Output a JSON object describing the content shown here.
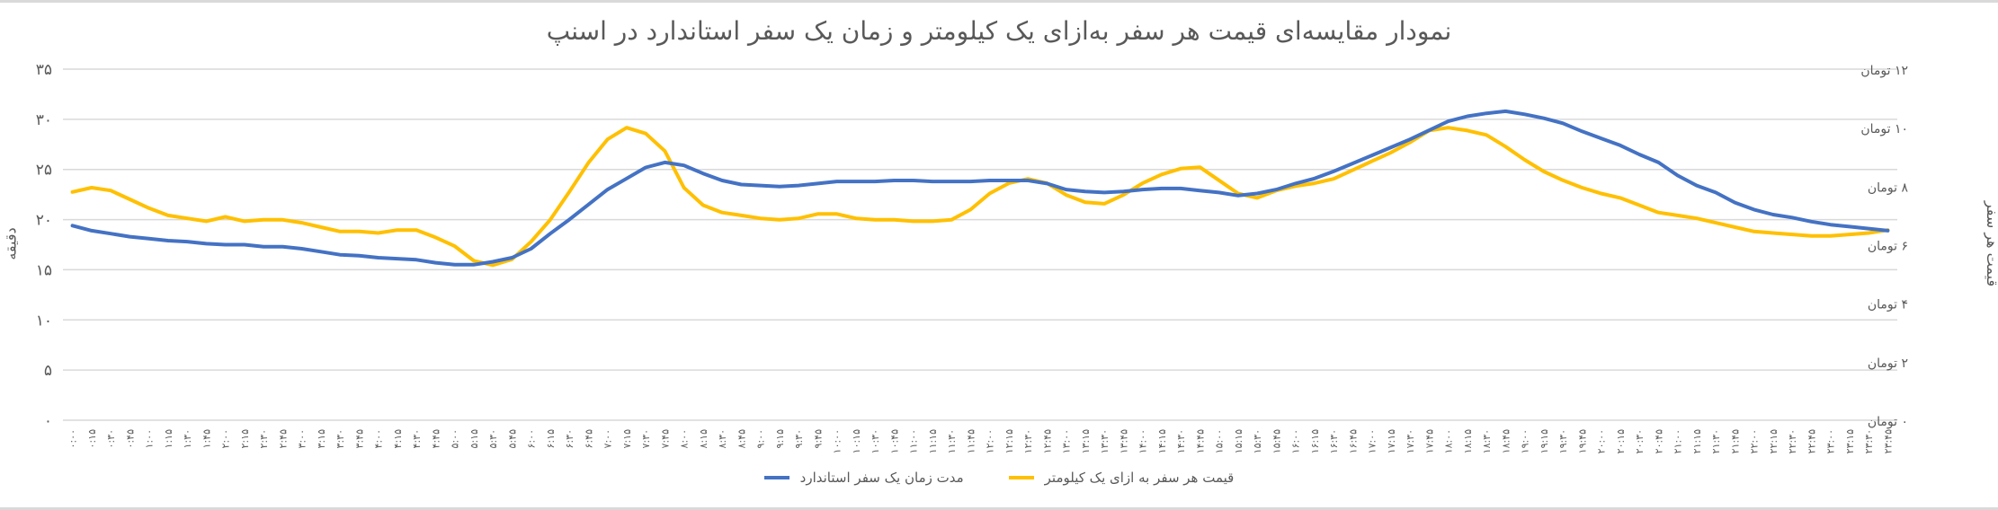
{
  "title": "نمودار مقایسه‌ای قیمت هر سفر به‌ازای یک کیلومتر و زمان یک سفر استاندارد در اسنپ",
  "left_axis": {
    "title": "دقیقه",
    "ticks": [
      "۰",
      "۵",
      "۱۰",
      "۱۵",
      "۲۰",
      "۲۵",
      "۳۰",
      "۳۵"
    ]
  },
  "right_axis": {
    "title": "قیمت هر سفر",
    "ticks": [
      "۰ تومان",
      "۲ تومان",
      "۴ تومان",
      "۶ تومان",
      "۸ تومان",
      "۱۰ تومان",
      "۱۲ تومان"
    ]
  },
  "legend": {
    "series_time": "مدت زمان یک سفر استاندارد",
    "series_price": "قیمت هر سفر به ازای یک کیلومتر"
  },
  "colors": {
    "time": "#4472C4",
    "price": "#FFC000",
    "grid": "#d9d9d9",
    "text": "#595959"
  },
  "chart_data": {
    "type": "line",
    "title": "نمودار مقایسه‌ای قیمت هر سفر به‌ازای یک کیلومتر و زمان یک سفر استاندارد در اسنپ",
    "xlabel": "",
    "ylabel": "دقیقه",
    "y2label": "قیمت هر سفر",
    "ylim": [
      0,
      35
    ],
    "y2lim": [
      0,
      12
    ],
    "grid": true,
    "legend_position": "bottom",
    "x": [
      "۰:۰۰",
      "۰:۱۵",
      "۰:۳۰",
      "۰:۴۵",
      "۱:۰۰",
      "۱:۱۵",
      "۱:۳۰",
      "۱:۴۵",
      "۲:۰۰",
      "۲:۱۵",
      "۲:۳۰",
      "۲:۴۵",
      "۳:۰۰",
      "۳:۱۵",
      "۳:۳۰",
      "۳:۴۵",
      "۴:۰۰",
      "۴:۱۵",
      "۴:۳۰",
      "۴:۴۵",
      "۵:۰۰",
      "۵:۱۵",
      "۵:۳۰",
      "۵:۴۵",
      "۶:۰۰",
      "۶:۱۵",
      "۶:۳۰",
      "۶:۴۵",
      "۷:۰۰",
      "۷:۱۵",
      "۷:۳۰",
      "۷:۴۵",
      "۸:۰۰",
      "۸:۱۵",
      "۸:۳۰",
      "۸:۴۵",
      "۹:۰۰",
      "۹:۱۵",
      "۹:۳۰",
      "۹:۴۵",
      "۱۰:۰۰",
      "۱۰:۱۵",
      "۱۰:۳۰",
      "۱۰:۴۵",
      "۱۱:۰۰",
      "۱۱:۱۵",
      "۱۱:۳۰",
      "۱۱:۴۵",
      "۱۲:۰۰",
      "۱۲:۱۵",
      "۱۲:۳۰",
      "۱۲:۴۵",
      "۱۳:۰۰",
      "۱۳:۱۵",
      "۱۳:۳۰",
      "۱۳:۴۵",
      "۱۴:۰۰",
      "۱۴:۱۵",
      "۱۴:۳۰",
      "۱۴:۴۵",
      "۱۵:۰۰",
      "۱۵:۱۵",
      "۱۵:۳۰",
      "۱۵:۴۵",
      "۱۶:۰۰",
      "۱۶:۱۵",
      "۱۶:۳۰",
      "۱۶:۴۵",
      "۱۷:۰۰",
      "۱۷:۱۵",
      "۱۷:۳۰",
      "۱۷:۴۵",
      "۱۸:۰۰",
      "۱۸:۱۵",
      "۱۸:۳۰",
      "۱۸:۴۵",
      "۱۹:۰۰",
      "۱۹:۱۵",
      "۱۹:۳۰",
      "۱۹:۴۵",
      "۲۰:۰۰",
      "۲۰:۱۵",
      "۲۰:۳۰",
      "۲۰:۴۵",
      "۲۱:۰۰",
      "۲۱:۱۵",
      "۲۱:۳۰",
      "۲۱:۴۵",
      "۲۲:۰۰",
      "۲۲:۱۵",
      "۲۲:۳۰",
      "۲۲:۴۵",
      "۲۳:۰۰",
      "۲۳:۱۵",
      "۲۳:۳۰",
      "۲۳:۴۵"
    ],
    "series": [
      {
        "name": "مدت زمان یک سفر استاندارد",
        "axis": "left",
        "values": [
          19.4,
          18.9,
          18.6,
          18.3,
          18.1,
          17.9,
          17.8,
          17.6,
          17.5,
          17.5,
          17.3,
          17.3,
          17.1,
          16.8,
          16.5,
          16.4,
          16.2,
          16.1,
          16.0,
          15.7,
          15.5,
          15.5,
          15.8,
          16.2,
          17.1,
          18.6,
          20.0,
          21.5,
          23.0,
          24.1,
          25.2,
          25.7,
          25.4,
          24.6,
          23.9,
          23.5,
          23.4,
          23.3,
          23.4,
          23.6,
          23.8,
          23.8,
          23.8,
          23.9,
          23.9,
          23.8,
          23.8,
          23.8,
          23.9,
          23.9,
          23.9,
          23.6,
          23.0,
          22.8,
          22.7,
          22.8,
          23.0,
          23.1,
          23.1,
          22.9,
          22.7,
          22.4,
          22.6,
          23.0,
          23.6,
          24.1,
          24.8,
          25.6,
          26.4,
          27.2,
          28.0,
          28.9,
          29.8,
          30.3,
          30.6,
          30.8,
          30.5,
          30.1,
          29.6,
          28.8,
          28.1,
          27.4,
          26.5,
          25.7,
          24.4,
          23.4,
          22.7,
          21.7,
          21.0,
          20.5,
          20.2,
          19.8,
          19.5,
          19.3,
          19.1,
          18.9
        ]
      },
      {
        "name": "قیمت هر سفر به ازای یک کیلومتر",
        "axis": "right",
        "values": [
          7.8,
          7.95,
          7.85,
          7.55,
          7.25,
          7.0,
          6.9,
          6.8,
          6.95,
          6.8,
          6.85,
          6.85,
          6.75,
          6.6,
          6.45,
          6.45,
          6.4,
          6.5,
          6.5,
          6.25,
          5.95,
          5.45,
          5.3,
          5.5,
          6.1,
          6.85,
          7.8,
          8.8,
          9.6,
          10.0,
          9.8,
          9.2,
          7.95,
          7.35,
          7.1,
          7.0,
          6.9,
          6.85,
          6.9,
          7.05,
          7.05,
          6.9,
          6.85,
          6.85,
          6.8,
          6.8,
          6.85,
          7.2,
          7.75,
          8.1,
          8.25,
          8.1,
          7.7,
          7.45,
          7.4,
          7.7,
          8.1,
          8.4,
          8.6,
          8.65,
          8.2,
          7.75,
          7.6,
          7.85,
          8.0,
          8.1,
          8.25,
          8.55,
          8.85,
          9.15,
          9.5,
          9.9,
          10.0,
          9.9,
          9.75,
          9.35,
          8.9,
          8.5,
          8.2,
          7.95,
          7.75,
          7.6,
          7.35,
          7.1,
          7.0,
          6.9,
          6.75,
          6.6,
          6.45,
          6.4,
          6.35,
          6.3,
          6.3,
          6.35,
          6.4,
          6.5
        ]
      }
    ]
  }
}
